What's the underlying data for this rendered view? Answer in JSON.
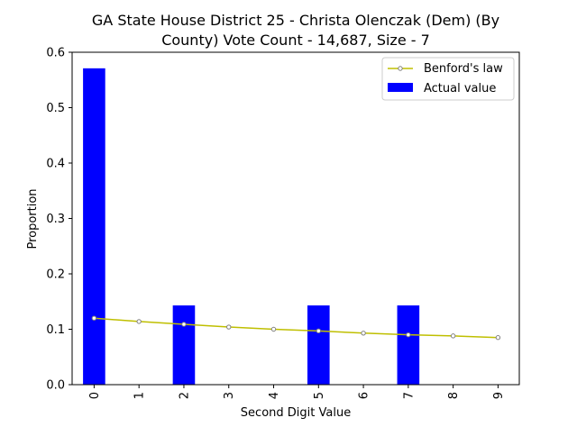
{
  "chart_data": {
    "type": "bar",
    "title_line1": "GA State House District 25 - Christa Olenczak (Dem) (By",
    "title_line2": "County) Vote Count - 14,687, Size - 7",
    "xlabel": "Second Digit Value",
    "ylabel": "Proportion",
    "ylim": [
      0,
      0.6
    ],
    "yticks": [
      "0.0",
      "0.1",
      "0.2",
      "0.3",
      "0.4",
      "0.5",
      "0.6"
    ],
    "categories": [
      "0",
      "1",
      "2",
      "3",
      "4",
      "5",
      "6",
      "7",
      "8",
      "9"
    ],
    "grid": false,
    "legend_position": "top-right",
    "series": [
      {
        "name": "Benford's law",
        "kind": "line",
        "color": "#bfbf00",
        "values": [
          0.12,
          0.114,
          0.109,
          0.104,
          0.1,
          0.097,
          0.093,
          0.09,
          0.088,
          0.085
        ]
      },
      {
        "name": "Actual value",
        "kind": "bar",
        "color": "#0000ff",
        "values": [
          0.571,
          0.0,
          0.143,
          0.0,
          0.0,
          0.143,
          0.0,
          0.143,
          0.0,
          0.0
        ]
      }
    ]
  }
}
